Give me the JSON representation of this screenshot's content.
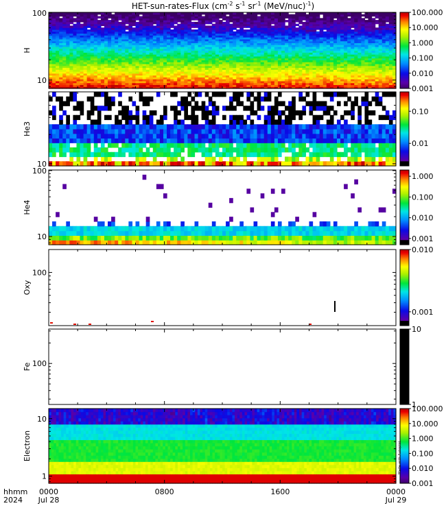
{
  "title_base": "HET-sun-rates-Flux (cm",
  "title_exp1": "-2",
  "title_s": " s",
  "title_exp2": "-1",
  "title_sr": " sr",
  "title_exp3": "-1",
  "title_unit": " (MeV/nuc)",
  "title_exp4": "-1",
  "title_close": ")",
  "x_axis": {
    "row_labels": [
      "hhmm",
      "2024"
    ],
    "ticks": [
      {
        "time": "0000",
        "date": "Jul 28",
        "hours": 0
      },
      {
        "time": "0800",
        "date": "",
        "hours": 8
      },
      {
        "time": "1600",
        "date": "",
        "hours": 16
      },
      {
        "time": "0000",
        "date": "Jul 29",
        "hours": 24
      }
    ],
    "range_hours": [
      0,
      24
    ]
  },
  "watermark": "Made with Autoplot",
  "chart_data": [
    {
      "type": "heatmap",
      "ylabel": "H",
      "yscale": "log",
      "ylim": [
        7.5,
        102
      ],
      "yticks": [
        {
          "v": 100,
          "label": "100"
        },
        {
          "v": 10,
          "label": "10"
        }
      ],
      "colorbar": {
        "scale": "log",
        "range": [
          0.001,
          100
        ],
        "palette": "rainbow",
        "ticks": [
          "100.000",
          "10.000",
          "1.000",
          "0.100",
          "0.010",
          "0.001"
        ]
      }
    },
    {
      "type": "heatmap",
      "ylabel": "He3",
      "yscale": "log",
      "ylim": [
        9.5,
        55
      ],
      "yticks": [
        {
          "v": 10,
          "label": "10"
        }
      ],
      "colorbar": {
        "scale": "log",
        "range": [
          0.002,
          0.4
        ],
        "palette": "rainbow_black",
        "ticks": [
          "0.10",
          "0.01"
        ]
      }
    },
    {
      "type": "heatmap",
      "ylabel": "He4",
      "yscale": "log",
      "ylim": [
        7.5,
        102
      ],
      "yticks": [
        {
          "v": 100,
          "label": "100"
        },
        {
          "v": 10,
          "label": "10"
        }
      ],
      "colorbar": {
        "scale": "log",
        "range": [
          0.0005,
          2
        ],
        "palette": "rainbow_black",
        "ticks": [
          "1.000",
          "0.100",
          "0.010",
          "0.001"
        ]
      }
    },
    {
      "type": "heatmap",
      "ylabel": "Oxy",
      "yscale": "log",
      "ylim": [
        20,
        200
      ],
      "yticks": [
        {
          "v": 100,
          "label": "100"
        }
      ],
      "colorbar": {
        "scale": "log",
        "range": [
          0.0006,
          0.01
        ],
        "palette": "rainbow_black",
        "ticks": [
          "0.010",
          "0.001"
        ]
      }
    },
    {
      "type": "heatmap",
      "ylabel": "Fe",
      "yscale": "log",
      "ylim": [
        25,
        320
      ],
      "yticks": [
        {
          "v": 100,
          "label": "100"
        }
      ],
      "colorbar": {
        "scale": "log",
        "range": [
          1,
          10
        ],
        "palette": "black",
        "ticks": [
          "10",
          "1"
        ]
      }
    },
    {
      "type": "heatmap",
      "ylabel": "Electron",
      "yscale": "log",
      "ylim": [
        0.75,
        15
      ],
      "yticks": [
        {
          "v": 10,
          "label": "10"
        },
        {
          "v": 1,
          "label": "1"
        }
      ],
      "colorbar": {
        "scale": "log",
        "range": [
          0.001,
          100
        ],
        "palette": "rainbow",
        "ticks": [
          "100.000",
          "10.000",
          "1.000",
          "0.100",
          "0.010",
          "0.001"
        ]
      }
    }
  ]
}
